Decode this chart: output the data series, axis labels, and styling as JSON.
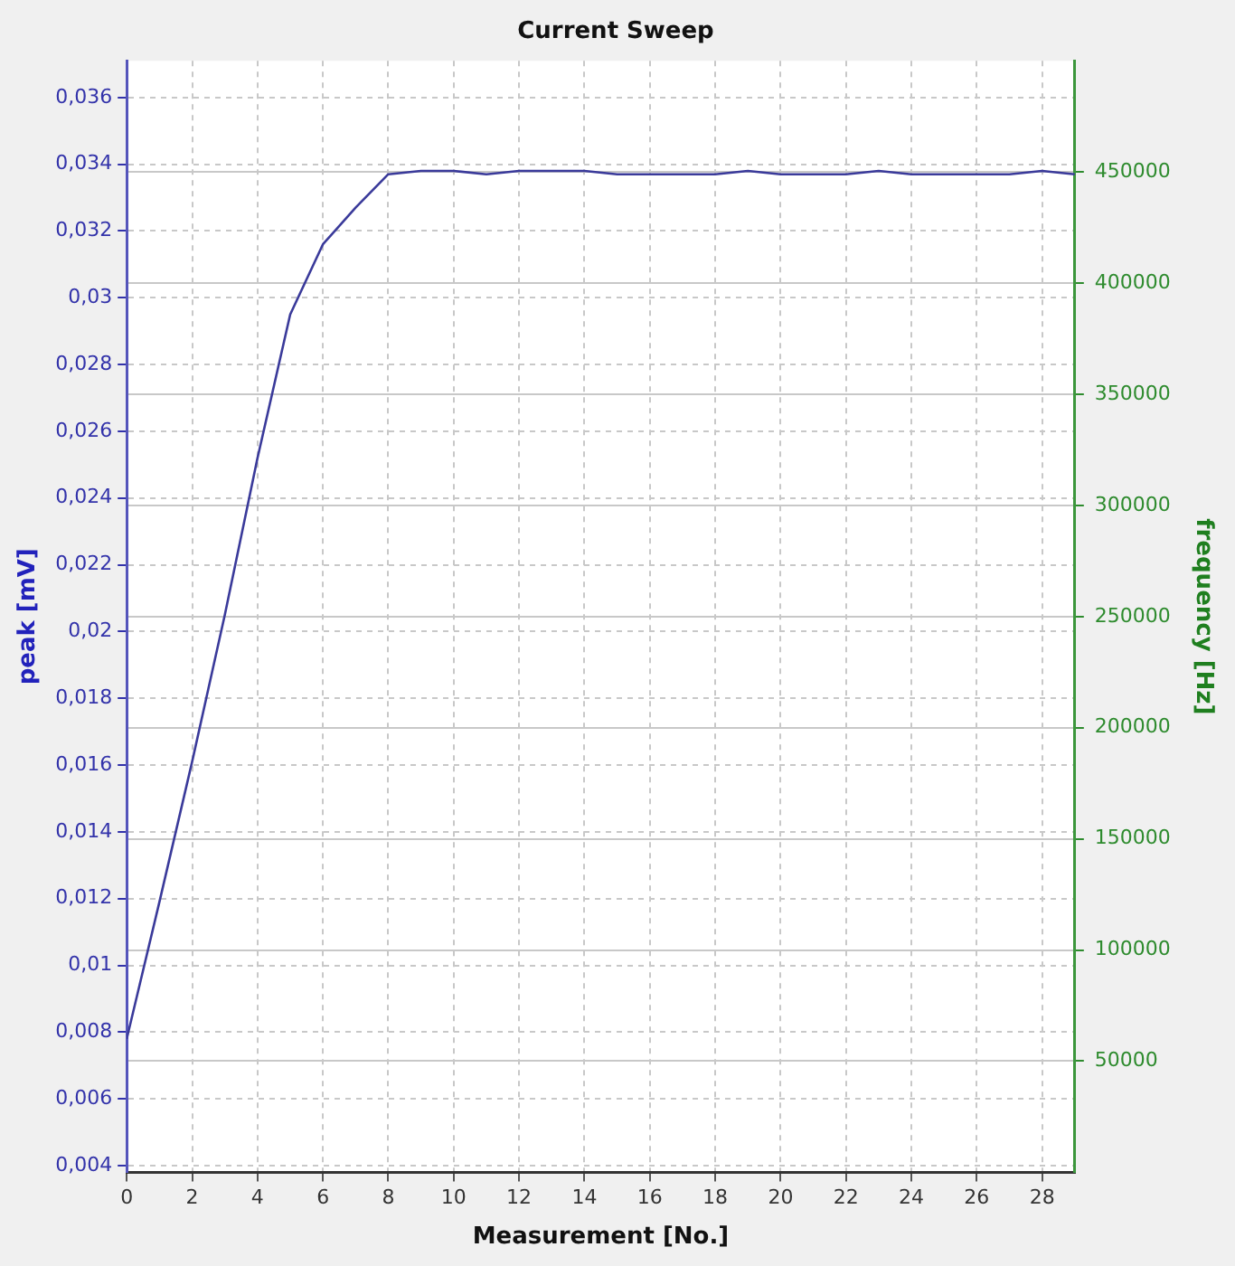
{
  "chart_data": {
    "type": "line",
    "title": "Current Sweep",
    "xlabel": "Measurement [No.]",
    "ylabel": "peak [mV]",
    "y2label": "frequency [Hz]",
    "x": [
      0,
      1,
      2,
      3,
      4,
      5,
      6,
      7,
      8,
      9,
      10,
      11,
      12,
      13,
      14,
      15,
      16,
      17,
      18,
      19,
      20,
      21,
      22,
      23,
      24,
      25,
      26,
      27,
      28,
      29
    ],
    "series": [
      {
        "color": "#3a3a9a",
        "values": [
          0.0078,
          0.0119,
          0.0161,
          0.0205,
          0.0252,
          0.0295,
          0.0316,
          0.0327,
          0.0337,
          0.0338,
          0.0338,
          0.0337,
          0.0338,
          0.0338,
          0.0338,
          0.0337,
          0.0337,
          0.0337,
          0.0337,
          0.0338,
          0.0337,
          0.0337,
          0.0337,
          0.0338,
          0.0337,
          0.0337,
          0.0337,
          0.0337,
          0.0338,
          0.0337
        ]
      }
    ],
    "xlim": [
      0,
      29
    ],
    "xticks": [
      0,
      2,
      4,
      6,
      8,
      10,
      12,
      14,
      16,
      18,
      20,
      22,
      24,
      26,
      28
    ],
    "ylim": [
      0.0038,
      0.0371
    ],
    "yticks": [
      {
        "value": 0.004,
        "label": "0,004"
      },
      {
        "value": 0.006,
        "label": "0,006"
      },
      {
        "value": 0.008,
        "label": "0,008"
      },
      {
        "value": 0.01,
        "label": "0,01"
      },
      {
        "value": 0.012,
        "label": "0,012"
      },
      {
        "value": 0.014,
        "label": "0,014"
      },
      {
        "value": 0.016,
        "label": "0,016"
      },
      {
        "value": 0.018,
        "label": "0,018"
      },
      {
        "value": 0.02,
        "label": "0,02"
      },
      {
        "value": 0.022,
        "label": "0,022"
      },
      {
        "value": 0.024,
        "label": "0,024"
      },
      {
        "value": 0.026,
        "label": "0,026"
      },
      {
        "value": 0.028,
        "label": "0,028"
      },
      {
        "value": 0.03,
        "label": "0,03"
      },
      {
        "value": 0.032,
        "label": "0,032"
      },
      {
        "value": 0.034,
        "label": "0,034"
      },
      {
        "value": 0.036,
        "label": "0,036"
      }
    ],
    "y2lim": [
      0,
      500000
    ],
    "y2ticks": [
      50000,
      100000,
      150000,
      200000,
      250000,
      300000,
      350000,
      400000,
      450000
    ],
    "grid": true,
    "legend": false,
    "marker": "none",
    "line_style": "solid"
  }
}
